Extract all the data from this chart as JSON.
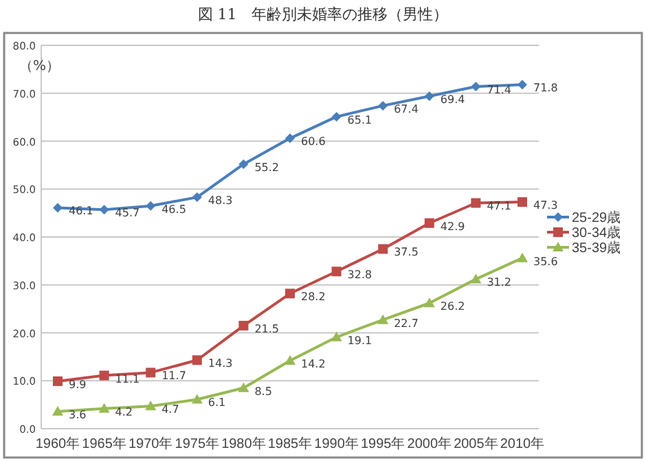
{
  "chart_data": {
    "type": "line",
    "title": "図 11　年齢別未婚率の推移（男性）",
    "ylabel": "（%）",
    "categories": [
      "1960年",
      "1965年",
      "1970年",
      "1975年",
      "1980年",
      "1985年",
      "1990年",
      "1995年",
      "2000年",
      "2005年",
      "2010年"
    ],
    "series": [
      {
        "name": "25-29歳",
        "color": "#4a7ebb",
        "marker": "diamond",
        "values": [
          46.1,
          45.7,
          46.5,
          48.3,
          55.2,
          60.6,
          65.1,
          67.4,
          69.4,
          71.4,
          71.8
        ]
      },
      {
        "name": "30-34歳",
        "color": "#be4b48",
        "marker": "square",
        "values": [
          9.9,
          11.1,
          11.7,
          14.3,
          21.5,
          28.2,
          32.8,
          37.5,
          42.9,
          47.1,
          47.3
        ]
      },
      {
        "name": "35-39歳",
        "color": "#98b954",
        "marker": "triangle",
        "values": [
          3.6,
          4.2,
          4.7,
          6.1,
          8.5,
          14.2,
          19.1,
          22.7,
          26.2,
          31.2,
          35.6
        ]
      }
    ],
    "ylim": [
      0,
      80
    ],
    "yticks": [
      {
        "value": 0,
        "label": "0.0"
      },
      {
        "value": 10,
        "label": "10.0"
      },
      {
        "value": 20,
        "label": "20.0"
      },
      {
        "value": 30,
        "label": "30.0"
      },
      {
        "value": 40,
        "label": "40.0"
      },
      {
        "value": 50,
        "label": "50.0"
      },
      {
        "value": 60,
        "label": "60.0"
      },
      {
        "value": 70,
        "label": "70.0"
      },
      {
        "value": 80,
        "label": "80.0"
      }
    ],
    "grid": "y",
    "legend": "right",
    "data_labels": true,
    "line_style": "solid"
  }
}
